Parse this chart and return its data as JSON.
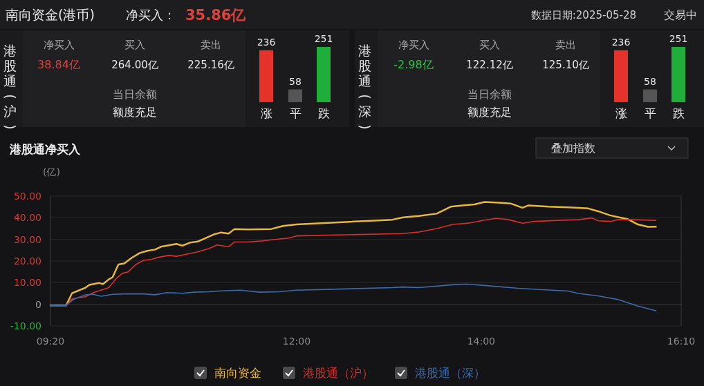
{
  "chart_data": [
    {
      "type": "other",
      "title": "南向资金(港币)",
      "annotations": [
        "净买入：",
        "35.86亿",
        "数据日期:2025-05-28",
        "交易中"
      ]
    },
    {
      "type": "other",
      "title": "港股通(沪)",
      "annotations": [
        "净买入",
        "38.84亿",
        "买入",
        "264.00亿",
        "卖出",
        "225.16亿",
        "当日余额",
        "额度充足"
      ]
    },
    {
      "type": "bar",
      "categories": [
        "涨",
        "平",
        "跌"
      ],
      "values": [
        236,
        58,
        251
      ],
      "colors": [
        "#e5322d",
        "#555555",
        "#1fae3a"
      ],
      "data_labels": true
    },
    {
      "type": "other",
      "title": "港股通(深)",
      "annotations": [
        "净买入",
        "-2.98亿",
        "买入",
        "122.12亿",
        "卖出",
        "125.10亿",
        "当日余额",
        "额度充足"
      ]
    },
    {
      "type": "bar",
      "categories": [
        "涨",
        "平",
        "跌"
      ],
      "values": [
        236,
        58,
        251
      ],
      "colors": [
        "#e5322d",
        "#555555",
        "#1fae3a"
      ],
      "data_labels": true
    },
    {
      "type": "line",
      "title": "港股通净买入",
      "ylabel": "(亿)",
      "annotations": [
        "叠加指数"
      ],
      "xlim": [
        9.333,
        16.167
      ],
      "xticks": [
        {
          "value": 9.333,
          "label": "09:20"
        },
        {
          "value": 12,
          "label": "12:00"
        },
        {
          "value": 14,
          "label": "14:00"
        },
        {
          "value": 16.167,
          "label": "16:10"
        }
      ],
      "ylim": [
        -10,
        50
      ],
      "yticks": [
        {
          "value": -10,
          "label": "-10.00"
        },
        0,
        {
          "value": 10,
          "label": "10.00"
        },
        {
          "value": 20,
          "label": "20.00"
        },
        {
          "value": 30,
          "label": "30.00"
        },
        {
          "value": 40,
          "label": "40.00"
        },
        {
          "value": 50,
          "label": "50.00"
        }
      ],
      "grid": "y",
      "legend": "bottom",
      "series": [
        {
          "name": "南向资金",
          "color": "#e8b83c",
          "x": [
            9.333,
            9.503,
            9.566,
            9.628,
            9.713,
            9.755,
            9.86,
            9.901,
            9.964,
            10.006,
            10.069,
            10.132,
            10.215,
            10.3,
            10.383,
            10.467,
            10.53,
            10.635,
            10.698,
            10.762,
            10.845,
            10.928,
            11.013,
            11.097,
            11.18,
            11.263,
            11.327,
            11.473,
            11.6,
            11.725,
            11.852,
            11.998,
            13.04,
            13.145,
            13.217,
            13.325,
            13.518,
            13.67,
            13.8,
            13.928,
            14.037,
            14.188,
            14.318,
            14.447,
            14.512,
            14.728,
            14.943,
            15.158,
            15.267,
            15.397,
            15.592,
            15.698,
            15.807,
            15.893
          ],
          "values": [
            -0.5,
            -0.5,
            5.1,
            6.2,
            7.7,
            9.0,
            9.9,
            9.3,
            11.5,
            12.5,
            18.4,
            18.9,
            21.5,
            23.7,
            24.7,
            25.3,
            26.6,
            27.4,
            27.9,
            27.1,
            28.5,
            29.0,
            30.6,
            32.2,
            33.2,
            32.7,
            34.8,
            34.6,
            34.7,
            34.8,
            36.2,
            36.9,
            39.1,
            40.1,
            40.4,
            40.8,
            41.9,
            45.1,
            45.7,
            46.2,
            47.3,
            47.0,
            46.6,
            44.6,
            45.7,
            45.1,
            44.8,
            44.3,
            43.0,
            41.1,
            39.3,
            36.9,
            35.8,
            35.9
          ]
        },
        {
          "name": "港股通（沪）",
          "color": "#d9302c",
          "x": [
            9.333,
            9.503,
            9.566,
            9.628,
            9.713,
            9.797,
            9.88,
            9.964,
            10.048,
            10.111,
            10.175,
            10.258,
            10.342,
            10.425,
            10.51,
            10.613,
            10.698,
            10.803,
            10.928,
            11.055,
            11.138,
            11.263,
            11.327,
            11.473,
            11.6,
            11.767,
            11.915,
            11.998,
            13.145,
            13.325,
            13.518,
            13.692,
            13.863,
            14.037,
            14.167,
            14.297,
            14.447,
            14.577,
            14.835,
            15.052,
            15.202,
            15.267,
            15.397,
            15.483,
            15.633,
            15.893
          ],
          "values": [
            -0.5,
            -0.5,
            2.4,
            3.0,
            3.5,
            5.4,
            6.5,
            7.7,
            12.0,
            14.3,
            15.0,
            18.4,
            20.3,
            20.7,
            21.8,
            22.6,
            22.2,
            23.1,
            24.2,
            25.8,
            27.4,
            26.6,
            28.8,
            28.8,
            29.2,
            30.0,
            30.6,
            31.6,
            32.7,
            33.4,
            35.0,
            36.9,
            37.5,
            38.9,
            39.7,
            39.1,
            37.5,
            38.3,
            38.8,
            39.1,
            39.9,
            38.6,
            38.3,
            39.1,
            39.1,
            38.8
          ]
        },
        {
          "name": "港股通（深）",
          "color": "#3d6cab",
          "x": [
            9.333,
            9.503,
            9.587,
            9.713,
            9.797,
            9.88,
            10.006,
            10.132,
            10.342,
            10.467,
            10.593,
            10.762,
            10.887,
            11.055,
            11.18,
            11.39,
            11.6,
            11.81,
            11.998,
            13.04,
            13.145,
            13.325,
            13.713,
            13.843,
            14.037,
            14.403,
            14.943,
            15.052,
            15.267,
            15.483,
            15.698,
            15.893
          ],
          "values": [
            -0.5,
            -0.5,
            2.4,
            4.4,
            4.6,
            3.7,
            4.6,
            4.8,
            4.8,
            4.4,
            5.4,
            5.1,
            5.6,
            5.8,
            6.2,
            6.5,
            5.6,
            5.8,
            6.5,
            7.7,
            8.0,
            7.7,
            9.1,
            9.3,
            8.7,
            7.4,
            6.1,
            5.0,
            3.9,
            2.2,
            -0.8,
            -3.0
          ]
        }
      ]
    }
  ]
}
